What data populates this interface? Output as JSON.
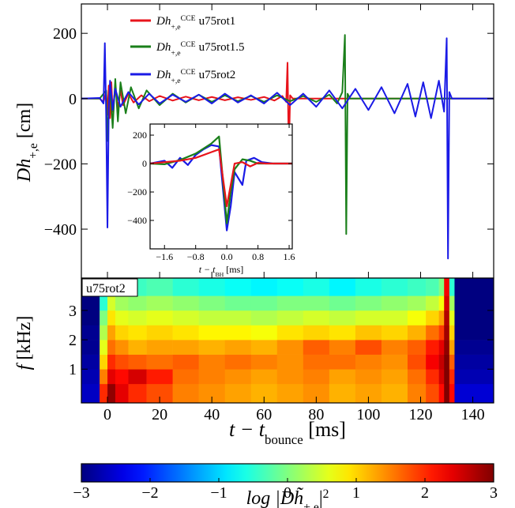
{
  "chart_data": [
    {
      "type": "line",
      "ylabel": {
        "text": "Dh",
        "sub": "+,e",
        "unit": " [cm]"
      },
      "legend_prefix": {
        "text": "Dh",
        "sup": "CCE",
        "sub": "+,e"
      },
      "legend": "upper left",
      "xlim": [
        -10,
        148
      ],
      "ylim": [
        -550,
        290
      ],
      "yticks": [
        {
          "value": -400,
          "label": "−400"
        },
        {
          "value": -200,
          "label": "−200"
        },
        0,
        200
      ],
      "series": [
        {
          "name": "u75rot1",
          "color": "#e8141c",
          "x": [
            -10,
            -3,
            -1.5,
            -0.5,
            0,
            0.5,
            1,
            1.5,
            2,
            3,
            4,
            5,
            6,
            8,
            10,
            13,
            16,
            20,
            25,
            30,
            35,
            40,
            45,
            50,
            55,
            60,
            64,
            67,
            68.5,
            69,
            69.5,
            70,
            71,
            75,
            90,
            110,
            130,
            148
          ],
          "values": [
            0,
            0,
            -10,
            20,
            -50,
            40,
            -60,
            50,
            -40,
            35,
            -30,
            25,
            -20,
            15,
            -12,
            10,
            -8,
            8,
            -6,
            6,
            -5,
            5,
            -5,
            4,
            -4,
            5,
            -6,
            8,
            -10,
            110,
            -175,
            10,
            0,
            0,
            0,
            0,
            0,
            0
          ]
        },
        {
          "name": "u75rot1.5",
          "color": "#1a7f1a",
          "x": [
            -10,
            -3,
            -1.5,
            -0.5,
            0,
            0.5,
            1,
            2,
            3,
            4,
            5,
            7,
            9,
            12,
            15,
            20,
            25,
            30,
            35,
            40,
            45,
            50,
            55,
            60,
            65,
            70,
            75,
            80,
            85,
            88,
            90,
            91,
            91.5,
            92,
            93,
            100,
            120,
            148
          ],
          "values": [
            0,
            0,
            15,
            25,
            -130,
            -40,
            45,
            -90,
            60,
            -70,
            50,
            -45,
            35,
            -30,
            25,
            -20,
            15,
            -12,
            12,
            -10,
            10,
            -8,
            8,
            -10,
            10,
            -8,
            8,
            -10,
            12,
            -15,
            20,
            195,
            -415,
            15,
            0,
            0,
            0,
            0
          ]
        },
        {
          "name": "u75rot2",
          "color": "#1a1ae6",
          "x": [
            -10,
            -3,
            -1.5,
            -1,
            -0.5,
            0,
            0.5,
            1,
            2,
            3,
            5,
            8,
            12,
            16,
            20,
            25,
            30,
            35,
            40,
            45,
            50,
            55,
            60,
            65,
            70,
            75,
            80,
            85,
            90,
            95,
            100,
            105,
            110,
            115,
            118,
            121,
            124,
            127,
            129,
            130,
            130.5,
            131,
            132,
            136,
            148
          ],
          "values": [
            0,
            2,
            -15,
            170,
            -50,
            -395,
            -30,
            55,
            -35,
            30,
            -25,
            20,
            -18,
            15,
            -15,
            12,
            -10,
            12,
            -15,
            15,
            -12,
            10,
            -15,
            18,
            -20,
            15,
            -25,
            25,
            -30,
            30,
            -35,
            35,
            -45,
            45,
            -55,
            50,
            -60,
            55,
            -40,
            185,
            -490,
            20,
            0,
            0,
            0
          ]
        }
      ]
    },
    {
      "type": "line",
      "xlabel": {
        "text": "t − t",
        "sub": "BH",
        "unit": " [ms]"
      },
      "xlim": [
        -1.97,
        1.68
      ],
      "ylim": [
        -600,
        278
      ],
      "xticks": [
        {
          "value": -1.6,
          "label": "−1.6"
        },
        {
          "value": -0.8,
          "label": "−0.8"
        },
        {
          "value": 0,
          "label": "0.0"
        },
        0.8,
        1.6
      ],
      "yticks": [
        {
          "value": -400,
          "label": "−400"
        },
        {
          "value": -200,
          "label": "−200"
        },
        0,
        200
      ],
      "series": [
        {
          "name": "u75rot2",
          "color": "#1a1ae6",
          "x": [
            -1.97,
            -1.6,
            -1.4,
            -1.2,
            -1.0,
            -0.8,
            -0.6,
            -0.4,
            -0.2,
            0,
            0.1,
            0.2,
            0.4,
            0.5,
            0.7,
            0.9,
            1.2,
            1.68
          ],
          "values": [
            0,
            20,
            -30,
            40,
            -10,
            60,
            100,
            130,
            120,
            -470,
            -300,
            -60,
            -150,
            20,
            40,
            10,
            0,
            0
          ]
        },
        {
          "name": "u75rot1.5",
          "color": "#1a7f1a",
          "x": [
            -1.97,
            -1.6,
            -1.2,
            -0.8,
            -0.4,
            -0.2,
            0,
            0.1,
            0.2,
            0.4,
            0.6,
            0.8,
            1.0,
            1.3,
            1.68
          ],
          "values": [
            0,
            -5,
            25,
            70,
            140,
            190,
            -420,
            -200,
            -40,
            30,
            20,
            0,
            0,
            0,
            0
          ]
        },
        {
          "name": "u75rot1",
          "color": "#e8141c",
          "x": [
            -1.97,
            -1.6,
            -1.2,
            -0.8,
            -0.4,
            -0.2,
            0,
            0.1,
            0.2,
            0.4,
            0.6,
            0.8,
            1.0,
            1.3,
            1.68
          ],
          "values": [
            0,
            10,
            20,
            40,
            80,
            100,
            -300,
            -150,
            0,
            10,
            -20,
            5,
            0,
            0,
            0
          ]
        }
      ]
    },
    {
      "type": "heatmap",
      "annotation": "u75rot2",
      "ylabel": {
        "text": "f",
        "unit": " [kHz]"
      },
      "xlabel": {
        "text": "t − t",
        "sub": "bounce",
        "unit": " [ms]"
      },
      "colorbar_label": {
        "text": "log |Dh̃",
        "sub": "+,e",
        "close": "|",
        "sup": "2"
      },
      "colormap": "jet",
      "xlim": [
        -10,
        148
      ],
      "ylim": [
        -0.15,
        4.1
      ],
      "xticks": [
        0,
        20,
        40,
        60,
        80,
        100,
        120,
        140
      ],
      "yticks": [
        1,
        2,
        3
      ],
      "clim": [
        -3,
        3
      ],
      "cticks": [
        {
          "value": -3,
          "label": "−3"
        },
        {
          "value": -2,
          "label": "−2"
        },
        {
          "value": -1,
          "label": "−1"
        },
        0,
        1,
        2,
        3
      ],
      "x_edges": [
        -10,
        -3,
        0,
        3,
        8,
        15,
        25,
        35,
        45,
        55,
        65,
        75,
        85,
        95,
        105,
        115,
        122,
        127,
        129,
        131,
        133,
        148
      ],
      "f_edges": [
        -0.15,
        0.5,
        1,
        1.5,
        2,
        2.5,
        3,
        3.5,
        4.1
      ],
      "values": [
        [
          -2.6,
          -2.7,
          -2.8,
          -2.9,
          -2.9,
          -3,
          -3,
          -3
        ],
        [
          2.0,
          1.5,
          1.0,
          0.6,
          0.3,
          0,
          -0.5,
          -1.2
        ],
        [
          2.9,
          2.4,
          2.0,
          1.6,
          1.3,
          0.9,
          0.5,
          0
        ],
        [
          2.4,
          2.2,
          1.8,
          1.4,
          1.0,
          0.6,
          0.2,
          -0.3
        ],
        [
          2.0,
          2.5,
          1.7,
          1.2,
          0.9,
          0.5,
          0.1,
          -0.4
        ],
        [
          1.8,
          2.1,
          1.6,
          1.3,
          1.0,
          0.6,
          0.2,
          -0.3
        ],
        [
          1.5,
          1.6,
          1.7,
          1.3,
          0.9,
          0.5,
          0.1,
          -0.5
        ],
        [
          1.4,
          1.5,
          1.5,
          1.2,
          0.8,
          0.4,
          0,
          -0.6
        ],
        [
          1.3,
          1.4,
          1.6,
          1.3,
          0.8,
          0.4,
          -0.1,
          -0.7
        ],
        [
          1.2,
          1.3,
          1.5,
          1.2,
          0.7,
          0.3,
          -0.1,
          -0.8
        ],
        [
          1.3,
          1.4,
          1.4,
          1.4,
          0.9,
          0.4,
          0,
          -0.7
        ],
        [
          1.4,
          1.5,
          1.6,
          1.7,
          1.0,
          0.5,
          0,
          -0.6
        ],
        [
          1.2,
          1.3,
          1.6,
          1.5,
          0.9,
          0.4,
          -0.1,
          -0.8
        ],
        [
          1.3,
          1.4,
          1.5,
          1.8,
          1.1,
          0.5,
          0,
          -0.6
        ],
        [
          1.2,
          1.3,
          1.4,
          1.5,
          1.0,
          0.5,
          0.1,
          -0.5
        ],
        [
          1.5,
          1.6,
          1.8,
          1.7,
          1.2,
          0.7,
          0.2,
          -0.4
        ],
        [
          1.8,
          2.0,
          2.3,
          2.1,
          1.6,
          1.0,
          0.4,
          -0.3
        ],
        [
          2.2,
          2.5,
          2.6,
          2.4,
          1.9,
          1.3,
          0.7,
          0
        ],
        [
          3.0,
          3.0,
          3.0,
          2.9,
          2.8,
          2.7,
          2.5,
          2.3
        ],
        [
          2.2,
          2.0,
          1.7,
          1.3,
          1.0,
          0.6,
          0.2,
          -0.5
        ],
        [
          -2.5,
          -2.7,
          -2.8,
          -2.9,
          -3,
          -3,
          -3,
          -3
        ]
      ]
    }
  ]
}
